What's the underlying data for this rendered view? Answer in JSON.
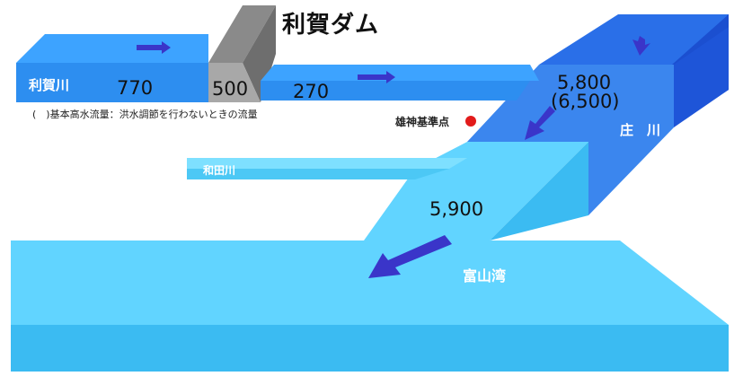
{
  "dam_name": "利賀ダム",
  "rivers": {
    "toga": "利賀川",
    "sho": "庄　川",
    "wada": "和田川",
    "bay": "富山湾"
  },
  "flows": {
    "toga_inflow": "770",
    "dam_cut": "500",
    "dam_release": "270",
    "sho_design": "5,800",
    "sho_basic": "(6,500)",
    "downstream": "5,900"
  },
  "reference_point": "雄神基準点",
  "note": "(　)基本高水流量：洪水調節を行わないときの流量",
  "colors": {
    "river_top": "#3da3ff",
    "river_front": "#2d8ef0",
    "sho_top": "#2a6fe8",
    "sho_side": "#1b4fd0",
    "lower_top": "#61d4ff",
    "lower_front": "#3bbbf2",
    "arrow": "#3a35c9",
    "dam": "#9a9a9a",
    "reference_dot": "#e21b1b"
  }
}
